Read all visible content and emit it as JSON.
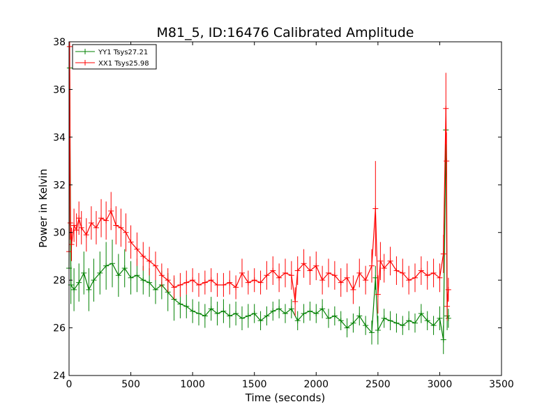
{
  "chart_data": {
    "type": "line",
    "title": "M81_5, ID:16476 Calibrated Amplitude",
    "xlabel": "Time (seconds)",
    "ylabel": "Power in Kelvin",
    "xlim": [
      0,
      3500
    ],
    "ylim": [
      24,
      38
    ],
    "xticks": [
      0,
      500,
      1000,
      1500,
      2000,
      2500,
      3000,
      3500
    ],
    "yticks": [
      24,
      26,
      28,
      30,
      32,
      34,
      36,
      38
    ],
    "grid": false,
    "legend_position": "top-left",
    "marker": "+",
    "series": [
      {
        "name": "YY1 Tsys27.21",
        "color": "#008000",
        "x": [
          0,
          5,
          15,
          40,
          80,
          120,
          160,
          200,
          250,
          300,
          350,
          400,
          450,
          500,
          550,
          600,
          650,
          700,
          750,
          800,
          850,
          900,
          950,
          1000,
          1050,
          1100,
          1150,
          1200,
          1250,
          1300,
          1350,
          1400,
          1450,
          1500,
          1550,
          1600,
          1650,
          1700,
          1750,
          1800,
          1850,
          1900,
          1950,
          2000,
          2050,
          2100,
          2150,
          2200,
          2250,
          2300,
          2350,
          2400,
          2450,
          2480,
          2500,
          2550,
          2600,
          2650,
          2700,
          2750,
          2800,
          2850,
          2900,
          2950,
          3000,
          3030,
          3050,
          3060,
          3070
        ],
        "y": [
          28.5,
          36.9,
          27.8,
          27.6,
          27.9,
          28.3,
          27.6,
          28.0,
          28.3,
          28.6,
          28.7,
          28.2,
          28.5,
          28.1,
          28.2,
          28.0,
          27.9,
          27.6,
          27.8,
          27.5,
          27.2,
          27.0,
          26.9,
          26.7,
          26.6,
          26.5,
          26.8,
          26.6,
          26.7,
          26.5,
          26.6,
          26.4,
          26.5,
          26.6,
          26.3,
          26.5,
          26.7,
          26.8,
          26.6,
          26.8,
          26.3,
          26.6,
          26.7,
          26.6,
          26.8,
          26.4,
          26.5,
          26.3,
          26.0,
          26.2,
          26.5,
          26.1,
          25.8,
          28.1,
          25.9,
          26.4,
          26.3,
          26.2,
          26.1,
          26.3,
          26.2,
          26.6,
          26.3,
          26.1,
          26.4,
          25.5,
          34.3,
          26.5,
          26.4
        ],
        "err": [
          0.6,
          0.3,
          0.8,
          0.9,
          0.8,
          0.9,
          0.9,
          0.9,
          0.9,
          1.0,
          1.0,
          0.9,
          0.8,
          0.7,
          0.7,
          0.6,
          0.6,
          0.6,
          0.6,
          0.8,
          0.9,
          0.6,
          0.5,
          0.5,
          0.5,
          0.5,
          0.5,
          0.5,
          0.5,
          0.5,
          0.5,
          0.5,
          0.5,
          0.4,
          0.4,
          0.4,
          0.4,
          0.4,
          0.4,
          0.4,
          0.4,
          0.4,
          0.4,
          0.4,
          0.4,
          0.4,
          0.4,
          0.4,
          0.4,
          0.4,
          0.4,
          0.4,
          0.5,
          0.5,
          0.6,
          0.4,
          0.4,
          0.4,
          0.4,
          0.4,
          0.4,
          0.4,
          0.4,
          0.4,
          0.5,
          0.6,
          0.2,
          0.6,
          0.4
        ]
      },
      {
        "name": "XX1 Tsys25.98",
        "color": "#ff0000",
        "x": [
          0,
          5,
          10,
          20,
          40,
          60,
          80,
          100,
          140,
          180,
          220,
          260,
          300,
          340,
          380,
          420,
          460,
          500,
          550,
          600,
          650,
          700,
          750,
          800,
          850,
          900,
          950,
          1000,
          1050,
          1100,
          1150,
          1200,
          1250,
          1300,
          1350,
          1400,
          1450,
          1500,
          1550,
          1600,
          1650,
          1700,
          1750,
          1800,
          1830,
          1850,
          1900,
          1950,
          2000,
          2050,
          2100,
          2150,
          2200,
          2250,
          2300,
          2350,
          2400,
          2450,
          2480,
          2500,
          2520,
          2550,
          2600,
          2650,
          2700,
          2750,
          2800,
          2850,
          2900,
          2950,
          3000,
          3030,
          3050,
          3055,
          3060,
          3070
        ],
        "y": [
          29.2,
          37.8,
          30.4,
          29.5,
          30.3,
          30.1,
          30.6,
          30.2,
          29.9,
          30.4,
          30.2,
          30.6,
          30.5,
          30.9,
          30.3,
          30.2,
          30.0,
          29.6,
          29.3,
          29.0,
          28.8,
          28.6,
          28.2,
          28.0,
          27.7,
          27.8,
          27.9,
          28.0,
          27.8,
          27.9,
          28.0,
          27.8,
          27.8,
          27.9,
          27.7,
          28.3,
          27.9,
          28.0,
          27.9,
          28.2,
          28.4,
          28.1,
          28.3,
          28.2,
          27.1,
          28.4,
          28.7,
          28.4,
          28.6,
          28.0,
          28.3,
          28.2,
          27.9,
          28.1,
          27.6,
          28.3,
          28.0,
          28.6,
          31.0,
          27.4,
          28.8,
          28.5,
          28.8,
          28.4,
          28.3,
          28.0,
          28.1,
          28.4,
          28.2,
          28.3,
          28.1,
          29.1,
          35.2,
          33.0,
          26.9,
          27.6
        ],
        "err": [
          0.4,
          0.2,
          0.7,
          0.7,
          0.7,
          0.7,
          0.7,
          0.7,
          0.7,
          0.7,
          0.7,
          0.8,
          0.8,
          0.8,
          0.8,
          0.8,
          0.8,
          0.7,
          0.7,
          0.6,
          0.6,
          0.6,
          0.5,
          0.5,
          0.5,
          0.5,
          0.5,
          0.5,
          0.5,
          0.5,
          0.5,
          0.5,
          0.5,
          0.5,
          0.5,
          0.6,
          0.5,
          0.5,
          0.5,
          0.6,
          0.6,
          0.6,
          0.6,
          0.6,
          0.6,
          0.6,
          0.6,
          0.6,
          0.6,
          0.6,
          0.6,
          0.6,
          0.6,
          0.6,
          0.6,
          0.6,
          0.6,
          0.7,
          2.0,
          0.8,
          0.8,
          0.6,
          0.6,
          0.6,
          0.6,
          0.6,
          0.6,
          0.6,
          0.6,
          0.6,
          0.6,
          0.8,
          1.5,
          1.2,
          0.6,
          0.5
        ]
      }
    ]
  }
}
